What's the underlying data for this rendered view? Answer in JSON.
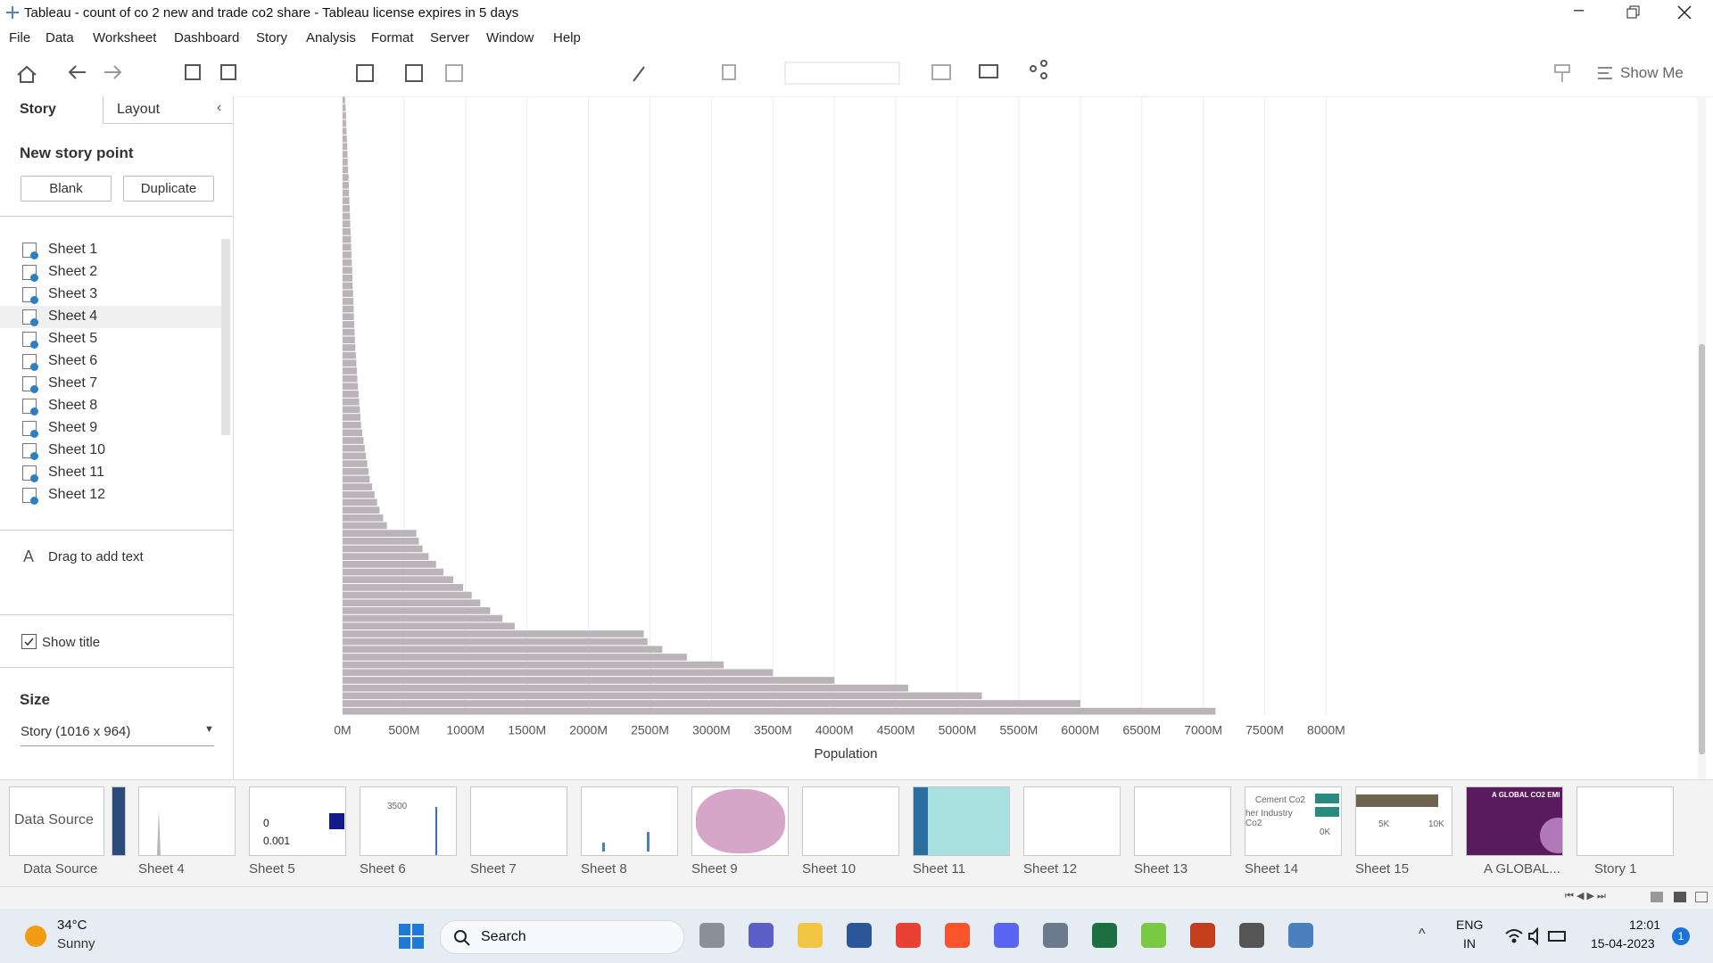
{
  "window": {
    "title": "Tableau - count of co 2 new and trade co2 share - Tableau license expires in 5 days"
  },
  "menu": [
    "File",
    "Data",
    "Worksheet",
    "Dashboard",
    "Story",
    "Analysis",
    "Format",
    "Server",
    "Window",
    "Help"
  ],
  "toolbar": {
    "show_me": "Show Me"
  },
  "left_panel": {
    "tabs": [
      "Story",
      "Layout"
    ],
    "new_story_point": "New story point",
    "buttons": [
      "Blank",
      "Duplicate"
    ],
    "sheets": [
      "Sheet 1",
      "Sheet 2",
      "Sheet 3",
      "Sheet 4",
      "Sheet 5",
      "Sheet 6",
      "Sheet 7",
      "Sheet 8",
      "Sheet 9",
      "Sheet 10",
      "Sheet 11",
      "Sheet 12"
    ],
    "drag_text": "Drag to add text",
    "show_title": "Show title",
    "size_label": "Size",
    "size_value": "Story (1016 x 964)"
  },
  "chart_data": {
    "type": "bar",
    "orientation": "horizontal",
    "x_label": "Population",
    "color": "#bab3b7",
    "grid": true,
    "xlim": [
      0,
      8200000000
    ],
    "xticks": [
      {
        "value": 0,
        "label": "0M"
      },
      {
        "value": 500000000,
        "label": "500M"
      },
      {
        "value": 1000000000,
        "label": "1000M"
      },
      {
        "value": 1500000000,
        "label": "1500M"
      },
      {
        "value": 2000000000,
        "label": "2000M"
      },
      {
        "value": 2500000000,
        "label": "2500M"
      },
      {
        "value": 3000000000,
        "label": "3000M"
      },
      {
        "value": 3500000000,
        "label": "3500M"
      },
      {
        "value": 4000000000,
        "label": "4000M"
      },
      {
        "value": 4500000000,
        "label": "4500M"
      },
      {
        "value": 5000000000,
        "label": "5000M"
      },
      {
        "value": 5500000000,
        "label": "5500M"
      },
      {
        "value": 6000000000,
        "label": "6000M"
      },
      {
        "value": 6500000000,
        "label": "6500M"
      },
      {
        "value": 7000000000,
        "label": "7000M"
      },
      {
        "value": 7500000000,
        "label": "7500M"
      },
      {
        "value": 8000000000,
        "label": "8000M"
      }
    ],
    "values": [
      20000000,
      25000000,
      28000000,
      30000000,
      32000000,
      35000000,
      38000000,
      40000000,
      42000000,
      45000000,
      48000000,
      50000000,
      52000000,
      55000000,
      58000000,
      60000000,
      62000000,
      65000000,
      68000000,
      70000000,
      72000000,
      75000000,
      78000000,
      80000000,
      82000000,
      85000000,
      88000000,
      90000000,
      92000000,
      95000000,
      98000000,
      100000000,
      104000000,
      108000000,
      112000000,
      116000000,
      120000000,
      125000000,
      130000000,
      135000000,
      140000000,
      145000000,
      150000000,
      160000000,
      170000000,
      180000000,
      190000000,
      200000000,
      210000000,
      220000000,
      240000000,
      260000000,
      280000000,
      300000000,
      330000000,
      360000000,
      600000000,
      620000000,
      650000000,
      700000000,
      760000000,
      820000000,
      900000000,
      980000000,
      1050000000,
      1120000000,
      1200000000,
      1300000000,
      1400000000,
      2450000000,
      2480000000,
      2600000000,
      2800000000,
      3100000000,
      3500000000,
      4000000000,
      4600000000,
      5200000000,
      6000000000,
      7100000000
    ]
  },
  "tabs": [
    "Data Source",
    "Sheet 4",
    "Sheet 5",
    "Sheet 6",
    "Sheet 7",
    "Sheet 8",
    "Sheet 9",
    "Sheet 10",
    "Sheet 11",
    "Sheet 12",
    "Sheet 13",
    "Sheet 14",
    "Sheet 15",
    "A GLOBAL...",
    "Story 1"
  ],
  "thumbnails": {
    "data_source": "Data Source",
    "sheet5_a": "0",
    "sheet5_b": "0.001",
    "sheet6": "3500",
    "sheet14_a": "Cement Co2",
    "sheet14_b": "her Industry Co2",
    "sheet14_c": "0K",
    "sheet15_a": "5K",
    "sheet15_b": "10K",
    "global": "A GLOBAL CO2 EMI"
  },
  "taskbar": {
    "temperature": "34°C",
    "weather": "Sunny",
    "search": "Search",
    "language": "ENG",
    "region": "IN",
    "time": "12:01",
    "date": "15-04-2023",
    "notifications": "1"
  }
}
